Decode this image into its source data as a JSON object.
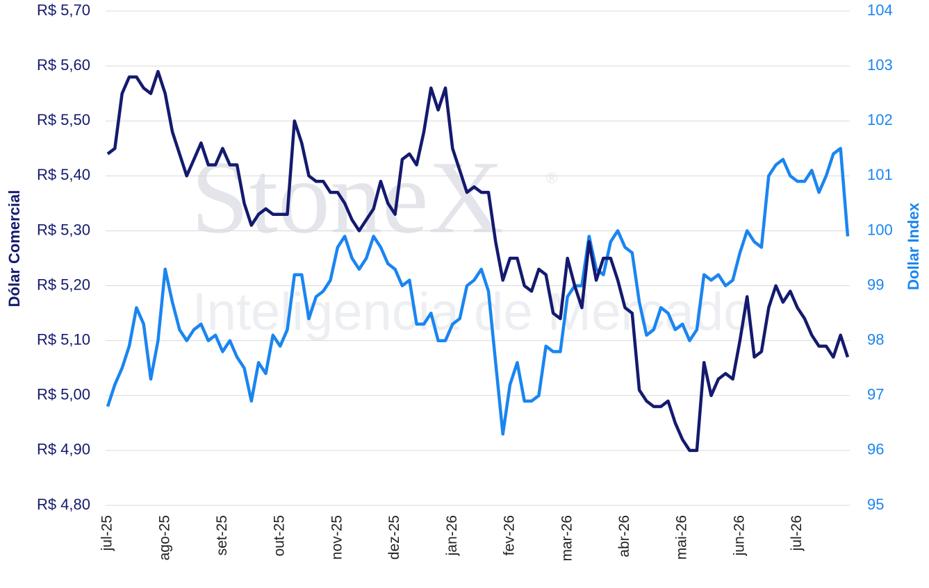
{
  "chart_data": {
    "type": "line",
    "ylabel": "Dólar Comercial",
    "y2label": "Dollar Index",
    "watermark": [
      "StoneX",
      "®",
      "Inteligencia de Mercado"
    ],
    "categories": [
      "jul-25",
      null,
      null,
      null,
      null,
      null,
      null,
      null,
      "ago-25",
      null,
      null,
      null,
      null,
      null,
      null,
      null,
      "set-25",
      null,
      null,
      null,
      null,
      null,
      null,
      null,
      "out-25",
      null,
      null,
      null,
      null,
      null,
      null,
      null,
      "nov-25",
      null,
      null,
      null,
      null,
      null,
      null,
      null,
      "dez-25",
      null,
      null,
      null,
      null,
      null,
      null,
      null,
      "jan-26",
      null,
      null,
      null,
      null,
      null,
      null,
      null,
      "fev-26",
      null,
      null,
      null,
      null,
      null,
      null,
      null,
      "mar-26",
      null,
      null,
      null,
      null,
      null,
      null,
      null,
      "abr-26",
      null,
      null,
      null,
      null,
      null,
      null,
      null,
      "mai-26",
      null,
      null,
      null,
      null,
      null,
      null,
      null,
      "jun-26",
      null,
      null,
      null,
      null,
      null,
      null,
      null,
      "jul-26",
      null,
      null,
      null,
      null,
      null,
      null,
      null
    ],
    "series": [
      {
        "name": "Dólar Comercial",
        "color": "#141a6e",
        "axis": "y",
        "values": [
          5.44,
          5.45,
          5.55,
          5.58,
          5.58,
          5.56,
          5.55,
          5.59,
          5.55,
          5.48,
          5.44,
          5.4,
          5.43,
          5.46,
          5.42,
          5.42,
          5.45,
          5.42,
          5.42,
          5.35,
          5.31,
          5.33,
          5.34,
          5.33,
          5.33,
          5.33,
          5.5,
          5.46,
          5.4,
          5.39,
          5.39,
          5.37,
          5.37,
          5.35,
          5.32,
          5.3,
          5.32,
          5.34,
          5.39,
          5.35,
          5.33,
          5.43,
          5.44,
          5.42,
          5.48,
          5.56,
          5.52,
          5.56,
          5.45,
          5.41,
          5.37,
          5.38,
          5.37,
          5.37,
          5.28,
          5.21,
          5.25,
          5.25,
          5.2,
          5.19,
          5.23,
          5.22,
          5.15,
          5.14,
          5.25,
          5.2,
          5.16,
          5.28,
          5.21,
          5.25,
          5.25,
          5.21,
          5.16,
          5.15,
          5.01,
          4.99,
          4.98,
          4.98,
          4.99,
          4.95,
          4.92,
          4.9,
          4.9,
          5.06,
          5.0,
          5.03,
          5.04,
          5.03,
          5.1,
          5.18,
          5.07,
          5.08,
          5.16,
          5.2,
          5.17,
          5.19,
          5.16,
          5.14,
          5.11,
          5.09,
          5.09,
          5.07,
          5.11,
          5.07
        ]
      },
      {
        "name": "Dollar Index",
        "color": "#1a85f0",
        "axis": "y2",
        "values": [
          96.8,
          97.2,
          97.5,
          97.9,
          98.6,
          98.3,
          97.3,
          98.0,
          99.3,
          98.7,
          98.2,
          98.0,
          98.2,
          98.3,
          98.0,
          98.1,
          97.8,
          98.0,
          97.7,
          97.5,
          96.9,
          97.6,
          97.4,
          98.1,
          97.9,
          98.2,
          99.2,
          99.2,
          98.4,
          98.8,
          98.9,
          99.1,
          99.7,
          99.9,
          99.5,
          99.3,
          99.5,
          99.9,
          99.7,
          99.4,
          99.3,
          99.0,
          99.1,
          98.3,
          98.3,
          98.5,
          98.0,
          98.0,
          98.3,
          98.4,
          99.0,
          99.1,
          99.3,
          98.9,
          97.6,
          96.3,
          97.2,
          97.6,
          96.9,
          96.9,
          97.0,
          97.9,
          97.8,
          97.8,
          98.8,
          99.0,
          99.0,
          99.9,
          99.3,
          99.2,
          99.8,
          100.0,
          99.7,
          99.6,
          98.7,
          98.1,
          98.2,
          98.6,
          98.5,
          98.2,
          98.3,
          98.0,
          98.2,
          99.2,
          99.1,
          99.2,
          99.0,
          99.1,
          99.6,
          100.0,
          99.8,
          99.7,
          101.0,
          101.2,
          101.3,
          101.0,
          100.9,
          100.9,
          101.1,
          100.7,
          101.0,
          101.4,
          101.5,
          99.9
        ]
      }
    ],
    "ylim": [
      4.8,
      5.7
    ],
    "yticks": [
      {
        "value": 4.8,
        "label": "R$ 4,80"
      },
      {
        "value": 4.9,
        "label": "R$ 4,90"
      },
      {
        "value": 5.0,
        "label": "R$ 5,00"
      },
      {
        "value": 5.1,
        "label": "R$ 5,10"
      },
      {
        "value": 5.2,
        "label": "R$ 5,20"
      },
      {
        "value": 5.3,
        "label": "R$ 5,30"
      },
      {
        "value": 5.4,
        "label": "R$ 5,40"
      },
      {
        "value": 5.5,
        "label": "R$ 5,50"
      },
      {
        "value": 5.6,
        "label": "R$ 5,60"
      },
      {
        "value": 5.7,
        "label": "R$ 5,70"
      }
    ],
    "y2lim": [
      95,
      104
    ],
    "y2ticks": [
      95,
      96,
      97,
      98,
      99,
      100,
      101,
      102,
      103,
      104
    ],
    "grid": true
  }
}
